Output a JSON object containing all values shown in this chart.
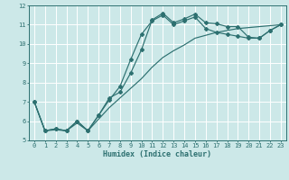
{
  "title": "",
  "xlabel": "Humidex (Indice chaleur)",
  "bg_color": "#cce8e8",
  "grid_color": "#ffffff",
  "line_color": "#2d7070",
  "xlim": [
    -0.5,
    23.5
  ],
  "ylim": [
    5,
    12
  ],
  "yticks": [
    5,
    6,
    7,
    8,
    9,
    10,
    11,
    12
  ],
  "xticks": [
    0,
    1,
    2,
    3,
    4,
    5,
    6,
    7,
    8,
    9,
    10,
    11,
    12,
    13,
    14,
    15,
    16,
    17,
    18,
    19,
    20,
    21,
    22,
    23
  ],
  "line1_x": [
    0,
    1,
    2,
    3,
    4,
    5,
    6,
    7,
    8,
    9,
    10,
    11,
    12,
    13,
    14,
    15,
    16,
    17,
    18,
    19,
    20,
    21,
    22,
    23
  ],
  "line1_y": [
    7.0,
    5.5,
    5.6,
    5.5,
    6.0,
    5.5,
    6.3,
    7.2,
    7.5,
    8.5,
    9.7,
    11.25,
    11.6,
    11.1,
    11.3,
    11.55,
    11.1,
    11.05,
    10.9,
    10.9,
    10.35,
    10.3,
    10.7,
    11.0
  ],
  "line2_x": [
    0,
    1,
    2,
    3,
    4,
    5,
    6,
    7,
    8,
    9,
    10,
    11,
    12,
    13,
    14,
    15,
    16,
    17,
    18,
    19,
    20,
    21,
    22,
    23
  ],
  "line2_y": [
    7.0,
    5.5,
    5.6,
    5.5,
    6.0,
    5.5,
    6.3,
    7.1,
    7.8,
    9.2,
    10.5,
    11.2,
    11.5,
    11.0,
    11.2,
    11.4,
    10.8,
    10.6,
    10.5,
    10.4,
    10.3,
    10.3,
    10.7,
    11.0
  ],
  "line3_x": [
    0,
    1,
    2,
    3,
    4,
    5,
    6,
    7,
    8,
    9,
    10,
    11,
    12,
    13,
    14,
    15,
    16,
    17,
    18,
    19,
    20,
    21,
    22,
    23
  ],
  "line3_y": [
    7.0,
    5.5,
    5.55,
    5.5,
    5.9,
    5.5,
    6.1,
    6.7,
    7.2,
    7.7,
    8.2,
    8.8,
    9.3,
    9.65,
    9.95,
    10.3,
    10.45,
    10.6,
    10.7,
    10.8,
    10.85,
    10.9,
    10.95,
    11.0
  ],
  "tick_fontsize": 5.0,
  "xlabel_fontsize": 6.0
}
